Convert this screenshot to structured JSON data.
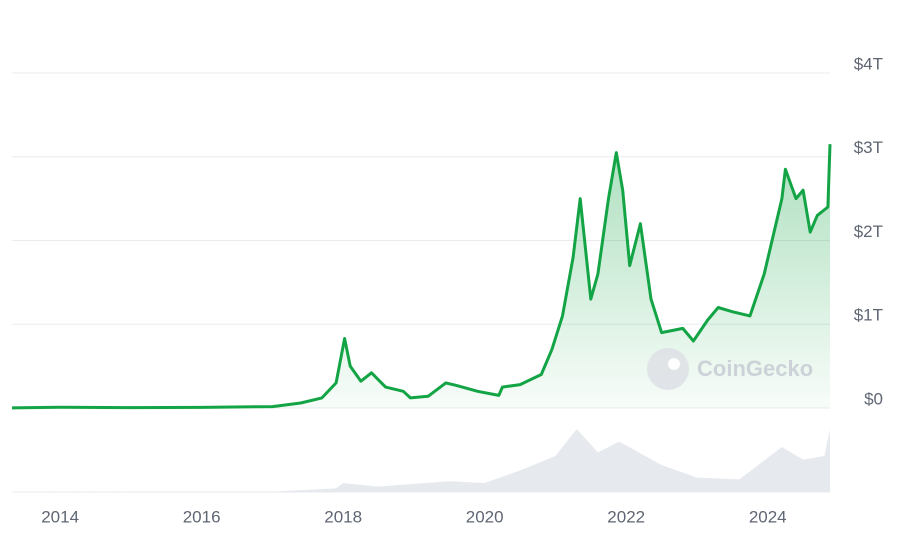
{
  "chart_data": {
    "type": "line",
    "watermark": "CoinGecko",
    "x": [
      2013.32,
      2014.0,
      2015.0,
      2016.0,
      2017.0,
      2017.4,
      2017.7,
      2017.9,
      2018.02,
      2018.1,
      2018.25,
      2018.4,
      2018.6,
      2018.85,
      2018.95,
      2019.2,
      2019.45,
      2019.6,
      2019.9,
      2020.2,
      2020.25,
      2020.5,
      2020.8,
      2020.95,
      2021.1,
      2021.25,
      2021.35,
      2021.5,
      2021.6,
      2021.75,
      2021.86,
      2021.95,
      2022.05,
      2022.2,
      2022.35,
      2022.5,
      2022.8,
      2022.95,
      2023.15,
      2023.3,
      2023.5,
      2023.75,
      2023.95,
      2024.2,
      2024.25,
      2024.4,
      2024.5,
      2024.6,
      2024.7,
      2024.85,
      2024.88
    ],
    "series": [
      {
        "color": "#13a445",
        "values": [
          0.0015,
          0.01,
          0.005,
          0.007,
          0.017,
          0.06,
          0.12,
          0.3,
          0.83,
          0.5,
          0.32,
          0.42,
          0.25,
          0.2,
          0.12,
          0.14,
          0.3,
          0.27,
          0.2,
          0.15,
          0.25,
          0.28,
          0.4,
          0.7,
          1.1,
          1.8,
          2.5,
          1.3,
          1.6,
          2.5,
          3.05,
          2.6,
          1.7,
          2.2,
          1.3,
          0.9,
          0.95,
          0.8,
          1.05,
          1.2,
          1.15,
          1.1,
          1.6,
          2.5,
          2.85,
          2.5,
          2.6,
          2.1,
          2.3,
          2.4,
          3.15
        ]
      }
    ],
    "volume": {
      "color": "#e6e9ee",
      "x": [
        2013.32,
        2017.0,
        2017.9,
        2018.0,
        2018.5,
        2019.5,
        2020.0,
        2020.5,
        2021.0,
        2021.3,
        2021.6,
        2021.9,
        2022.5,
        2023.0,
        2023.6,
        2024.2,
        2024.5,
        2024.8,
        2024.88
      ],
      "values": [
        0.0,
        0.002,
        0.02,
        0.05,
        0.03,
        0.06,
        0.05,
        0.12,
        0.2,
        0.35,
        0.22,
        0.28,
        0.15,
        0.08,
        0.07,
        0.25,
        0.18,
        0.2,
        0.35
      ],
      "ylim": [
        0,
        0.4
      ]
    },
    "xlim": [
      2013.32,
      2024.88
    ],
    "xticks": [
      2014,
      2016,
      2018,
      2020,
      2022,
      2024
    ],
    "ylim": [
      0,
      4.1
    ],
    "yticks": [
      {
        "value": 0,
        "label": "$0"
      },
      {
        "value": 1,
        "label": "$1T"
      },
      {
        "value": 2,
        "label": "$2T"
      },
      {
        "value": 3,
        "label": "$3T"
      },
      {
        "value": 4,
        "label": "$4T"
      }
    ],
    "grid": true
  }
}
